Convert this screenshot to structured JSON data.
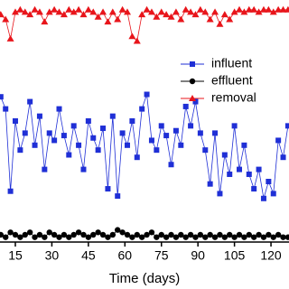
{
  "chart_data": {
    "type": "line",
    "x_label": "Time (days)",
    "x": [
      9,
      11,
      13,
      15,
      17,
      19,
      21,
      23,
      25,
      27,
      29,
      31,
      33,
      35,
      37,
      39,
      41,
      43,
      45,
      47,
      49,
      51,
      53,
      55,
      57,
      59,
      61,
      63,
      65,
      67,
      69,
      71,
      73,
      75,
      77,
      79,
      81,
      83,
      85,
      87,
      89,
      91,
      93,
      95,
      97,
      99,
      101,
      103,
      105,
      107,
      109,
      111,
      113,
      115,
      117,
      119,
      121,
      123,
      125,
      127
    ],
    "xlim": [
      8.7,
      127.4
    ],
    "xticks": [
      15,
      30,
      45,
      60,
      75,
      90,
      105,
      120
    ],
    "ylim": [
      0,
      100
    ],
    "legend": "upper right",
    "series": [
      {
        "name": "influent",
        "color": "#1f2fd6",
        "marker": "square",
        "values": [
          60,
          55,
          21,
          50,
          38,
          45,
          58,
          40,
          52,
          30,
          45,
          42,
          55,
          44,
          36,
          48,
          40,
          30,
          50,
          43,
          38,
          47,
          22,
          52,
          19,
          45,
          40,
          50,
          35,
          55,
          61,
          42,
          38,
          48,
          44,
          32,
          46,
          40,
          56,
          48,
          58,
          45,
          38,
          24,
          45,
          20,
          36,
          28,
          48,
          30,
          40,
          28,
          22,
          30,
          18,
          25,
          20,
          42,
          35,
          48
        ]
      },
      {
        "name": "effluent",
        "color": "#000000",
        "marker": "circle",
        "values": [
          3,
          2,
          4,
          3,
          2,
          3,
          4,
          2,
          3,
          2,
          4,
          3,
          2,
          3,
          2,
          3,
          4,
          3,
          2,
          3,
          4,
          3,
          2,
          3,
          5,
          4,
          3,
          2,
          3,
          2,
          3,
          4,
          2,
          3,
          2,
          3,
          2,
          3,
          2,
          3,
          2,
          3,
          2,
          3,
          2,
          3,
          2,
          3,
          2,
          3,
          2,
          3,
          2,
          3,
          2,
          3,
          2,
          3,
          2,
          2
        ]
      },
      {
        "name": "removal",
        "color": "#e8151b",
        "marker": "triangle",
        "values": [
          94,
          92,
          84,
          95,
          96,
          95,
          94,
          96,
          95,
          91,
          95,
          96,
          95,
          94,
          96,
          95,
          96,
          94,
          96,
          95,
          93,
          95,
          91,
          95,
          92,
          96,
          95,
          85,
          83,
          94,
          96,
          95,
          93,
          95,
          94,
          93,
          95,
          92,
          96,
          95,
          94,
          96,
          95,
          92,
          95,
          90,
          94,
          92,
          95,
          96,
          95,
          96,
          96,
          95,
          96,
          96,
          95,
          96,
          96,
          96
        ]
      }
    ]
  }
}
